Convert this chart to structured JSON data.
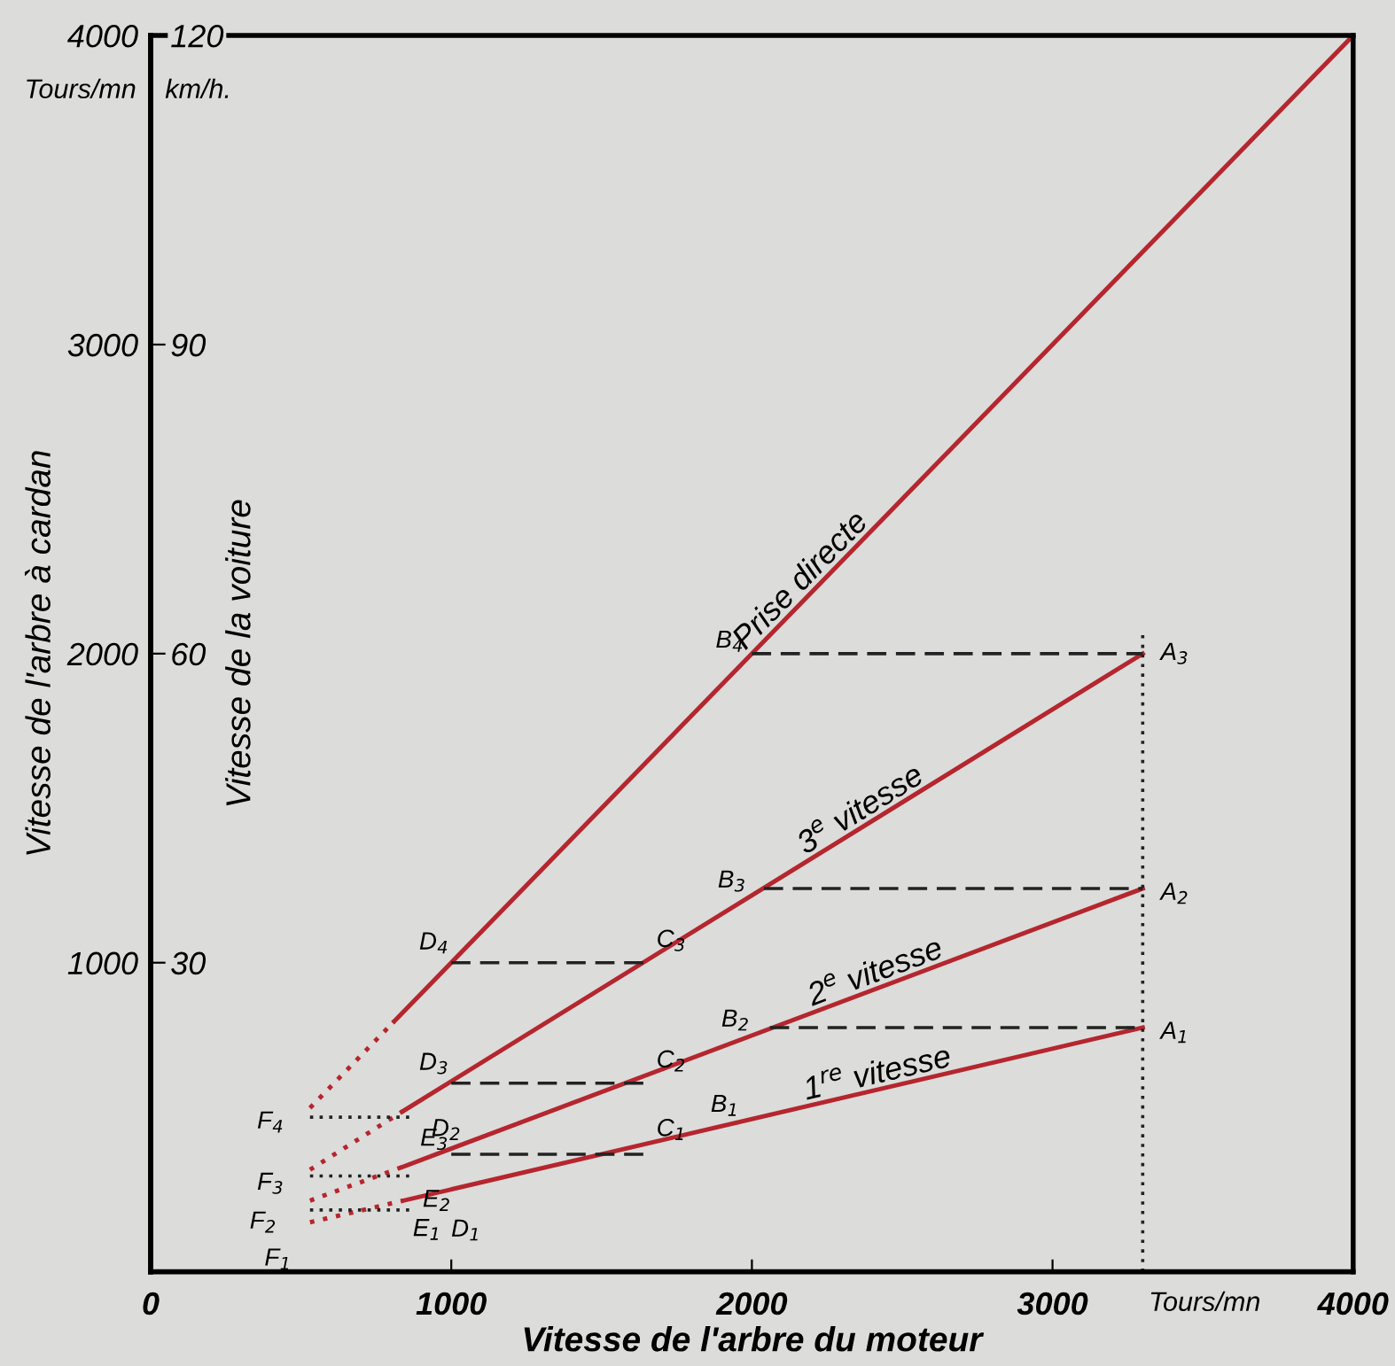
{
  "chart_data": {
    "type": "line",
    "xlabel": "Vitesse de l'arbre du moteur",
    "ylabel": "Vitesse de l'arbre à cardan",
    "y2label": "Vitesse de la voiture",
    "xlim": [
      0,
      4000
    ],
    "xticks": [
      0,
      1000,
      2000,
      3000,
      4000
    ],
    "ylim": [
      0,
      4000
    ],
    "yticks": [
      1000,
      2000,
      3000,
      4000
    ],
    "y2lim": [
      0,
      120
    ],
    "y2ticks": [
      30,
      60,
      90,
      120
    ],
    "grid": false,
    "legend": false,
    "marker": "none",
    "series": [
      {
        "color": "#b5262e",
        "line_style": "dotted",
        "x": [
          530,
          810
        ],
        "values": [
          530,
          810
        ]
      },
      {
        "color": "#b5262e",
        "line_style": "solid",
        "x": [
          810,
          4000
        ],
        "values": [
          810,
          4000
        ]
      },
      {
        "color": "#b5262e",
        "line_style": "dotted",
        "x": [
          530,
          840
        ],
        "values": [
          330,
          520
        ]
      },
      {
        "color": "#b5262e",
        "line_style": "solid",
        "x": [
          840,
          3300
        ],
        "values": [
          520,
          2000
        ]
      },
      {
        "color": "#b5262e",
        "line_style": "dotted",
        "x": [
          530,
          840
        ],
        "values": [
          230,
          340
        ]
      },
      {
        "color": "#b5262e",
        "line_style": "solid",
        "x": [
          840,
          3300
        ],
        "values": [
          340,
          1240
        ]
      },
      {
        "color": "#b5262e",
        "line_style": "dotted",
        "x": [
          530,
          840
        ],
        "values": [
          160,
          230
        ]
      },
      {
        "color": "#b5262e",
        "line_style": "solid",
        "x": [
          840,
          3300
        ],
        "values": [
          230,
          790
        ]
      },
      {
        "color": "#222222",
        "line_style": "dashed",
        "x": [
          2000,
          3300
        ],
        "values": [
          2000,
          2000
        ]
      },
      {
        "color": "#222222",
        "line_style": "dashed",
        "x": [
          2040,
          3300
        ],
        "values": [
          1240,
          1240
        ]
      },
      {
        "color": "#222222",
        "line_style": "dashed",
        "x": [
          2060,
          3300
        ],
        "values": [
          790,
          790
        ]
      },
      {
        "color": "#222222",
        "line_style": "dashed",
        "x": [
          1000,
          1650
        ],
        "values": [
          1000,
          1000
        ]
      },
      {
        "color": "#222222",
        "line_style": "dashed",
        "x": [
          1000,
          1650
        ],
        "values": [
          610,
          610
        ]
      },
      {
        "color": "#222222",
        "line_style": "dashed",
        "x": [
          1000,
          1650
        ],
        "values": [
          380,
          380
        ]
      },
      {
        "color": "#222222",
        "line_style": "dotted",
        "x": [
          530,
          870
        ],
        "values": [
          500,
          500
        ]
      },
      {
        "color": "#222222",
        "line_style": "dotted",
        "x": [
          530,
          870
        ],
        "values": [
          310,
          310
        ]
      },
      {
        "color": "#222222",
        "line_style": "dotted",
        "x": [
          530,
          870
        ],
        "values": [
          200,
          200
        ]
      },
      {
        "color": "#222222",
        "line_style": "dotted",
        "x": [
          3300,
          3300
        ],
        "values": [
          0,
          2080
        ]
      }
    ],
    "annotations": [
      "Tours/mn",
      "km/h.",
      "Tours/mn",
      {
        "text": "Prise directe",
        "x": 2200,
        "y": 2200
      },
      {
        "text": "3$^{e}$ vitesse",
        "x": 2390,
        "y": 1450
      },
      {
        "text": "2$^{e}$ vitesse",
        "x": 2430,
        "y": 920
      },
      {
        "text": "1$^{re}$ vitesse",
        "x": 2430,
        "y": 590
      },
      {
        "text": "F$_{4}$",
        "x": 530,
        "y": 500
      },
      {
        "text": "F$_{3}$",
        "x": 530,
        "y": 310
      },
      {
        "text": "F$_{2}$",
        "x": 530,
        "y": 200
      },
      {
        "text": "F$_{1}$",
        "x": 530,
        "y": 160
      },
      {
        "text": "E$_{3}$",
        "x": 870,
        "y": 500
      },
      {
        "text": "E$_{2}$",
        "x": 870,
        "y": 310
      },
      {
        "text": "E$_{1}$",
        "x": 870,
        "y": 200
      },
      {
        "text": "D$_{1}$",
        "x": 1000,
        "y": 270
      },
      {
        "text": "D$_{2}$",
        "x": 1000,
        "y": 380
      },
      {
        "text": "D$_{3}$",
        "x": 1000,
        "y": 610
      },
      {
        "text": "D$_{4}$",
        "x": 1000,
        "y": 1000
      },
      {
        "text": "C$_{3}$",
        "x": 1650,
        "y": 1000
      },
      {
        "text": "C$_{2}$",
        "x": 1650,
        "y": 610
      },
      {
        "text": "C$_{1}$",
        "x": 1650,
        "y": 380
      },
      {
        "text": "B$_{4}$",
        "x": 2000,
        "y": 2000
      },
      {
        "text": "B$_{3}$",
        "x": 2040,
        "y": 1240
      },
      {
        "text": "B$_{2}$",
        "x": 2060,
        "y": 790
      },
      {
        "text": "B$_{1}$",
        "x": 2000,
        "y": 490
      },
      {
        "text": "A$_{3}$",
        "x": 3300,
        "y": 2000
      },
      {
        "text": "A$_{2}$",
        "x": 3300,
        "y": 1240
      },
      {
        "text": "A$_{1}$",
        "x": 3300,
        "y": 790
      }
    ]
  }
}
